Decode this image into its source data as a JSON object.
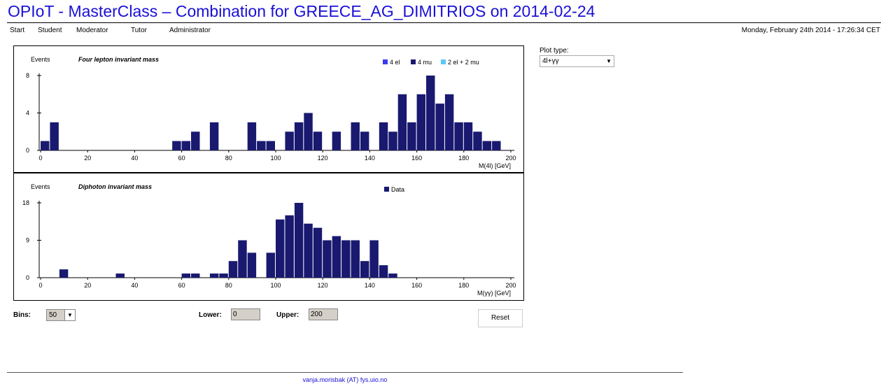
{
  "title": "OPIoT - MasterClass – Combination for GREECE_AG_DIMITRIOS on 2014-02-24",
  "nav": [
    "Start",
    "Student",
    "Moderator",
    "Tutor",
    "Administrator"
  ],
  "datetime": "Monday, February 24th 2014 - 17:26:34 CET",
  "plot_type": {
    "label": "Plot type:",
    "value": "4l+γγ"
  },
  "controls": {
    "bins_label": "Bins:",
    "bins_value": "50",
    "lower_label": "Lower:",
    "lower_value": "0",
    "upper_label": "Upper:",
    "upper_value": "200",
    "reset_label": "Reset"
  },
  "footer": "vanja.morisbak (AT) fys.uio.no",
  "colors": {
    "title": "#1a10d6",
    "data": "#191970",
    "el4": "#3a3af0",
    "mu4": "#191970",
    "el2mu2": "#5bc8f5"
  },
  "chart_data": [
    {
      "type": "bar",
      "ylabel": "Events",
      "title": "Four lepton invariant mass",
      "xlabel": "M(4l) [GeV]",
      "xlim": [
        0,
        200
      ],
      "ylim": [
        0,
        8
      ],
      "yticks": [
        0,
        4,
        8
      ],
      "xticks": [
        0,
        20,
        40,
        60,
        80,
        100,
        120,
        140,
        160,
        180,
        200
      ],
      "bin_width": 4,
      "legend": [
        "4 el",
        "4 mu",
        "2 el + 2 mu"
      ],
      "legend_colors": [
        "#3a3af0",
        "#191970",
        "#5bc8f5"
      ],
      "bin_starts": [
        0,
        4,
        56,
        60,
        64,
        72,
        88,
        92,
        96,
        104,
        108,
        112,
        116,
        124,
        132,
        136,
        144,
        148,
        152,
        156,
        160,
        164,
        168,
        172,
        176,
        180,
        184,
        188,
        192
      ],
      "values": [
        1,
        3,
        1,
        1,
        2,
        3,
        3,
        1,
        1,
        2,
        3,
        4,
        2,
        2,
        3,
        2,
        3,
        2,
        6,
        3,
        6,
        8,
        5,
        6,
        3,
        3,
        2,
        1,
        1
      ]
    },
    {
      "type": "bar",
      "ylabel": "Events",
      "title": "Diphoton invariant mass",
      "xlabel": "M(γγ) [GeV]",
      "xlim": [
        0,
        200
      ],
      "ylim": [
        0,
        18
      ],
      "yticks": [
        0,
        9,
        18
      ],
      "xticks": [
        0,
        20,
        40,
        60,
        80,
        100,
        120,
        140,
        160,
        180,
        200
      ],
      "bin_width": 4,
      "legend": [
        "Data"
      ],
      "legend_colors": [
        "#191970"
      ],
      "bin_starts": [
        8,
        32,
        60,
        64,
        72,
        76,
        80,
        84,
        88,
        96,
        100,
        104,
        108,
        112,
        116,
        120,
        124,
        128,
        132,
        136,
        140,
        144,
        148
      ],
      "values": [
        2,
        1,
        1,
        1,
        1,
        1,
        4,
        9,
        6,
        6,
        14,
        15,
        18,
        13,
        12,
        9,
        10,
        9,
        9,
        4,
        9,
        3,
        1
      ]
    }
  ]
}
